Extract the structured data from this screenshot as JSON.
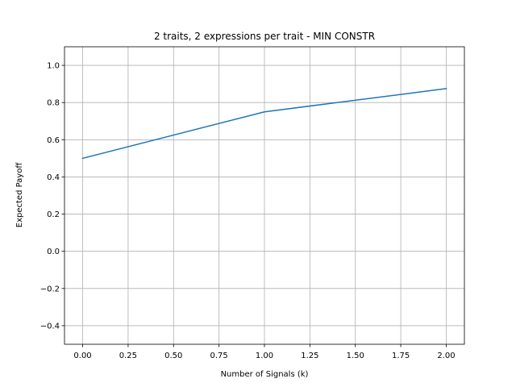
{
  "chart_data": {
    "type": "line",
    "title": "2 traits, 2 expressions per trait - MIN CONSTR",
    "xlabel": "Number of Signals (k)",
    "ylabel": "Expected Payoff",
    "xlim": [
      -0.1,
      2.1
    ],
    "ylim": [
      -0.5,
      1.1
    ],
    "xticks": [
      0.0,
      0.25,
      0.5,
      0.75,
      1.0,
      1.25,
      1.5,
      1.75,
      2.0
    ],
    "xtick_labels": [
      "0.00",
      "0.25",
      "0.50",
      "0.75",
      "1.00",
      "1.25",
      "1.50",
      "1.75",
      "2.00"
    ],
    "yticks": [
      -0.4,
      -0.2,
      0.0,
      0.2,
      0.4,
      0.6,
      0.8,
      1.0
    ],
    "ytick_labels": [
      "−0.4",
      "−0.2",
      "0.0",
      "0.2",
      "0.4",
      "0.6",
      "0.8",
      "1.0"
    ],
    "grid": true,
    "series": [
      {
        "color": "#1f77b4",
        "x": [
          0,
          1,
          2
        ],
        "y": [
          0.5,
          0.75,
          0.875
        ]
      }
    ]
  }
}
